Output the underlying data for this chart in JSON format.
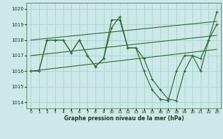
{
  "title": "Graphe pression niveau de la mer (hPa)",
  "bg_color": "#cce8e8",
  "grid_color": "#aad4d4",
  "line_color": "#2d6a2d",
  "xlim": [
    -0.5,
    23.5
  ],
  "ylim": [
    1013.6,
    1020.4
  ],
  "yticks": [
    1014,
    1015,
    1016,
    1017,
    1018,
    1019,
    1020
  ],
  "xtick_labels": [
    "0",
    "1",
    "2",
    "3",
    "4",
    "5",
    "6",
    "7",
    "8",
    "9",
    "10",
    "11",
    "12",
    "13",
    "14",
    "15",
    "16",
    "17",
    "18",
    "19",
    "20",
    "21",
    "22",
    "23"
  ],
  "pressure": [
    1016.0,
    1016.0,
    1018.0,
    1018.0,
    1018.0,
    1017.2,
    1018.0,
    1017.0,
    1016.3,
    1016.8,
    1018.8,
    1019.5,
    1017.5,
    1017.5,
    1016.8,
    1015.5,
    1014.8,
    1014.2,
    1014.1,
    1016.0,
    1017.0,
    1016.8,
    1018.0,
    1019.8
  ],
  "pressure2": [
    1016.0,
    1016.0,
    1018.0,
    1018.0,
    1018.0,
    1017.2,
    1018.0,
    1017.0,
    1016.3,
    1016.8,
    1019.3,
    1019.3,
    1017.5,
    1017.5,
    1016.0,
    1014.8,
    1014.2,
    1014.1,
    1016.0,
    1017.0,
    1017.0,
    1016.0,
    1018.0,
    1019.0
  ],
  "trend_upper": [
    0,
    1018.0,
    23,
    1019.2
  ],
  "trend_lower": [
    0,
    1016.0,
    23,
    1017.4
  ],
  "trend_mid": [
    0,
    1017.0,
    23,
    1018.3
  ],
  "figsize": [
    3.2,
    2.0
  ],
  "dpi": 100
}
